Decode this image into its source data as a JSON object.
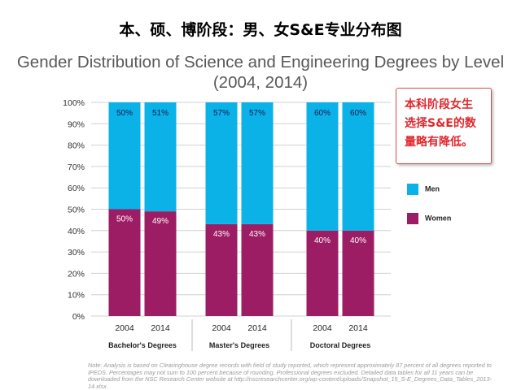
{
  "headline": "本、硕、博阶段：男、女S&E专业分布图",
  "callout": "本科阶段女生选择S&E的数量略有降低。",
  "footnote": "Note: Analysis is based on Clearinghouse degree records with field of study reported, which represent approximately 87 percent of all degrees reported to IPEDS. Percentages may not sum to 100 percent because of rounding. Professional degrees excluded. Detailed data tables for all 11 years can be downloaded from the NSC Research Center website at http://nscresearchcenter.org/wp-content/uploads/Snapshot_15_S-E_Degrees_Data_Tables_2013-14.xlsx.",
  "colors": {
    "men": "#0ab2e8",
    "women": "#9c1d63",
    "label": "#1a1a4d"
  },
  "chart_data": {
    "type": "bar",
    "stacked": true,
    "title": "Gender Distribution of Science and Engineering Degrees by Level",
    "subtitle": "(2004, 2014)",
    "ylim": [
      0,
      100
    ],
    "yticks": [
      "0%",
      "10%",
      "20%",
      "30%",
      "40%",
      "50%",
      "60%",
      "70%",
      "80%",
      "90%",
      "100%"
    ],
    "groups": [
      {
        "name": "Bachelor's Degrees",
        "bars": [
          {
            "year": "2004",
            "women": 50,
            "men": 50,
            "women_label": "50%",
            "men_label": "50%"
          },
          {
            "year": "2014",
            "women": 49,
            "men": 51,
            "women_label": "49%",
            "men_label": "51%"
          }
        ]
      },
      {
        "name": "Master's Degrees",
        "bars": [
          {
            "year": "2004",
            "women": 43,
            "men": 57,
            "women_label": "43%",
            "men_label": "57%"
          },
          {
            "year": "2014",
            "women": 43,
            "men": 57,
            "women_label": "43%",
            "men_label": "57%"
          }
        ]
      },
      {
        "name": "Doctoral Degrees",
        "bars": [
          {
            "year": "2004",
            "women": 40,
            "men": 60,
            "women_label": "40%",
            "men_label": "60%"
          },
          {
            "year": "2014",
            "women": 40,
            "men": 60,
            "women_label": "40%",
            "men_label": "60%"
          }
        ]
      }
    ],
    "legend": [
      {
        "name": "Men",
        "color": "#0ab2e8"
      },
      {
        "name": "Women",
        "color": "#9c1d63"
      }
    ],
    "legend_position": "right"
  }
}
